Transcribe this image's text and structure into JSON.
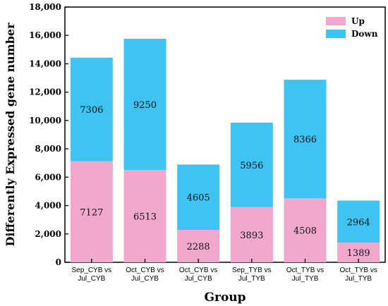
{
  "chart_data": {
    "type": "bar",
    "stacked": true,
    "categories": [
      [
        "Sep_CYB vs",
        "Jul_CYB"
      ],
      [
        "Oct_CYB vs",
        "Jul_CYB"
      ],
      [
        "Oct_CYB vs",
        "Jul_CYB"
      ],
      [
        "Sep_TYB vs",
        "Jul_TYB"
      ],
      [
        "Oct_TYB vs",
        "Jul_TYB"
      ],
      [
        "Oct_TYB vs",
        "Jul_TYB"
      ]
    ],
    "series": [
      {
        "name": "Up",
        "color": "#F0A8CC",
        "values": [
          7127,
          6513,
          2288,
          3893,
          4508,
          1389
        ]
      },
      {
        "name": "Down",
        "color": "#3FC4F2",
        "values": [
          7306,
          9250,
          4605,
          5956,
          8366,
          2964
        ]
      }
    ],
    "data_labels": {
      "Up": [
        "7127",
        "6513",
        "2288",
        "3893",
        "4508",
        "1389"
      ],
      "Down": [
        "7306",
        "9250",
        "4605",
        "5956",
        "8366",
        "2964"
      ]
    },
    "xlabel": "Group",
    "ylabel": "Differently Expressed gene number",
    "ylim": [
      0,
      18000
    ],
    "yticks": [
      0,
      2000,
      4000,
      6000,
      8000,
      10000,
      12000,
      14000,
      16000,
      18000
    ],
    "ytick_labels": [
      "0",
      "2,000",
      "4,000",
      "6,000",
      "8,000",
      "10,000",
      "12,000",
      "14,000",
      "16,000",
      "18,000"
    ],
    "grid": false,
    "legend_position": "top-right"
  }
}
